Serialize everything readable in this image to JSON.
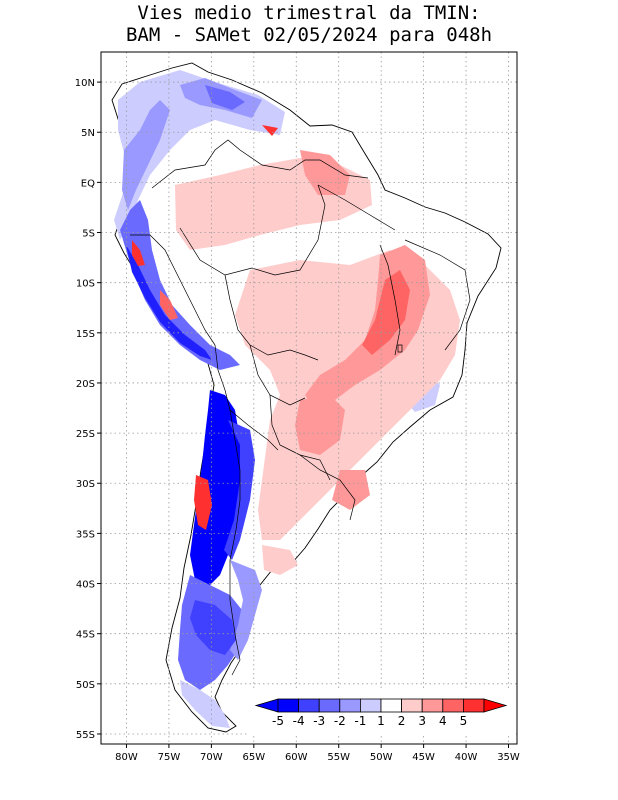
{
  "title": {
    "line1": "Vies medio trimestral da TMIN:",
    "line2": "BAM - SAMet 02/05/2024  para 048h"
  },
  "map": {
    "region": "South America",
    "extent": {
      "lon_min": -83,
      "lon_max": -34,
      "lat_min": -56,
      "lat_max": 13
    },
    "lat_ticks": [
      {
        "value": 10,
        "label": "10N"
      },
      {
        "value": 5,
        "label": "5N"
      },
      {
        "value": 0,
        "label": "EQ"
      },
      {
        "value": -5,
        "label": "5S"
      },
      {
        "value": -10,
        "label": "10S"
      },
      {
        "value": -15,
        "label": "15S"
      },
      {
        "value": -20,
        "label": "20S"
      },
      {
        "value": -25,
        "label": "25S"
      },
      {
        "value": -30,
        "label": "30S"
      },
      {
        "value": -35,
        "label": "35S"
      },
      {
        "value": -40,
        "label": "40S"
      },
      {
        "value": -45,
        "label": "45S"
      },
      {
        "value": -50,
        "label": "50S"
      },
      {
        "value": -55,
        "label": "55S"
      }
    ],
    "lon_ticks": [
      {
        "value": -80,
        "label": "80W"
      },
      {
        "value": -75,
        "label": "75W"
      },
      {
        "value": -70,
        "label": "70W"
      },
      {
        "value": -65,
        "label": "65W"
      },
      {
        "value": -60,
        "label": "60W"
      },
      {
        "value": -55,
        "label": "55W"
      },
      {
        "value": -50,
        "label": "50W"
      },
      {
        "value": -45,
        "label": "45W"
      },
      {
        "value": -40,
        "label": "40W"
      },
      {
        "value": -35,
        "label": "35W"
      }
    ],
    "grid": "dotted"
  },
  "colorbar": {
    "labels": [
      "-5",
      "-4",
      "-3",
      "-2",
      "-1",
      "1",
      "2",
      "3",
      "4",
      "5"
    ],
    "colors": [
      "#0000ff",
      "#4040ff",
      "#6a6aff",
      "#9999ff",
      "#ccccff",
      "#ffffff",
      "#ffcccc",
      "#ff9999",
      "#ff6464",
      "#ff3030"
    ],
    "under_color": "#0000ff",
    "over_color": "#ff0000"
  }
}
